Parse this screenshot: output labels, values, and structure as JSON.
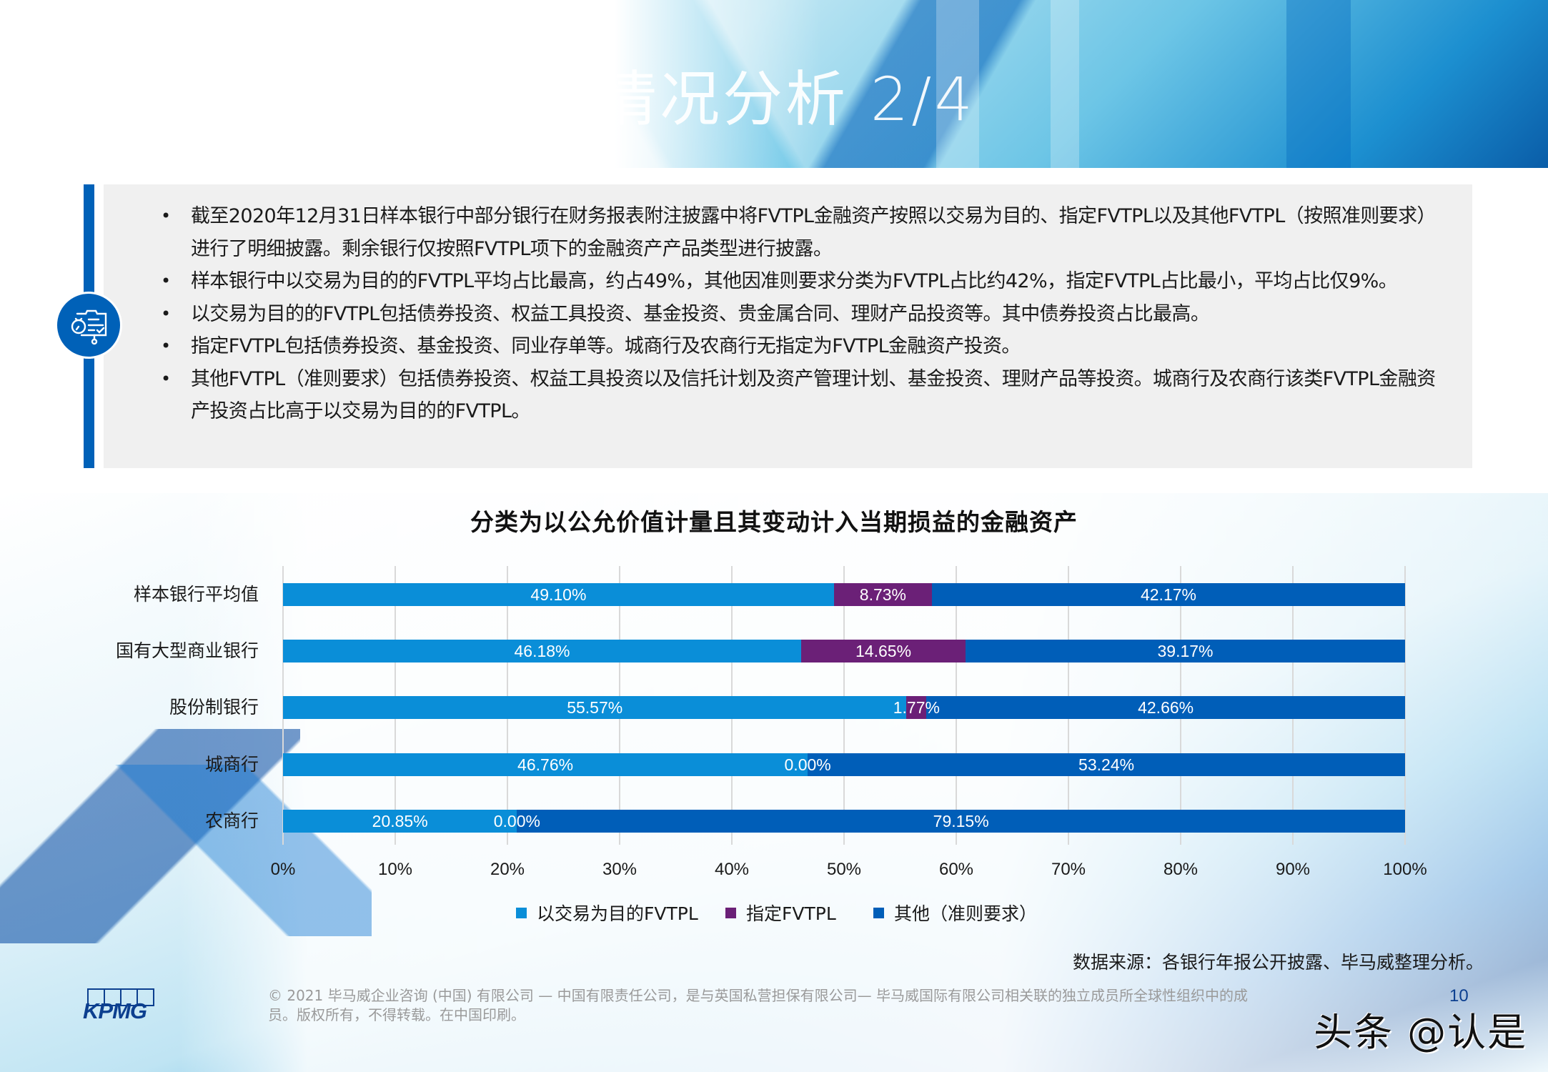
{
  "header": {
    "title": "情况分析 2/4"
  },
  "summary": {
    "icon": "presentation-stopwatch-icon",
    "bullets": [
      "截至2020年12月31日样本银行中部分银行在财务报表附注披露中将FVTPL金融资产按照以交易为目的、指定FVTPL以及其他FVTPL（按照准则要求）进行了明细披露。剩余银行仅按照FVTPL项下的金融资产产品类型进行披露。",
      "样本银行中以交易为目的的FVTPL平均占比最高，约占49%，其他因准则要求分类为FVTPL占比约42%，指定FVTPL占比最小，平均占比仅9%。",
      "以交易为目的的FVTPL包括债券投资、权益工具投资、基金投资、贵金属合同、理财产品投资等。其中债券投资占比最高。",
      "指定FVTPL包括债券投资、基金投资、同业存单等。城商行及农商行无指定为FVTPL金融资产投资。",
      "其他FVTPL（准则要求）包括债券投资、权益工具投资以及信托计划及资产管理计划、基金投资、理财产品等投资。城商行及农商行该类FVTPL金融资产投资占比高于以交易为目的的FVTPL。"
    ]
  },
  "chart_data": {
    "type": "bar",
    "orientation": "horizontal",
    "stacked": true,
    "title": "分类为以公允价值计量且其变动计入当期损益的金融资产",
    "xlabel": "",
    "ylabel": "",
    "xlim": [
      0,
      100
    ],
    "x_ticks": [
      "0%",
      "10%",
      "20%",
      "30%",
      "40%",
      "50%",
      "60%",
      "70%",
      "80%",
      "90%",
      "100%"
    ],
    "grid": true,
    "legend_position": "bottom",
    "categories": [
      "样本银行平均值",
      "国有大型商业银行",
      "股份制银行",
      "城商行",
      "农商行"
    ],
    "series": [
      {
        "name": "以交易为目的FVTPL",
        "color": "#0a8ed8",
        "values": [
          49.1,
          46.18,
          55.57,
          46.76,
          20.85
        ],
        "labels": [
          "49.10%",
          "46.18%",
          "55.57%",
          "46.76%",
          "20.85%"
        ]
      },
      {
        "name": "指定FVTPL",
        "color": "#6b2077",
        "values": [
          8.73,
          14.65,
          1.77,
          0.0,
          0.0
        ],
        "labels": [
          "8.73%",
          "14.65%",
          "1.77%",
          "0.00%",
          "0.00%"
        ]
      },
      {
        "name": "其他（准则要求）",
        "color": "#005eb8",
        "values": [
          42.17,
          39.17,
          42.66,
          53.24,
          79.15
        ],
        "labels": [
          "42.17%",
          "39.17%",
          "42.66%",
          "53.24%",
          "79.15%"
        ]
      }
    ]
  },
  "source": "数据来源：各银行年报公开披露、毕马威整理分析。",
  "footer": {
    "logo": "KPMG",
    "copyright_line1": "© 2021 毕马威企业咨询 (中国) 有限公司 — 中国有限责任公司，是与英国私营担保有限公司— 毕马威国际有限公司相关联的独立成员所全球性组织中的成",
    "copyright_line2": "员。版权所有，不得转载。在中国印刷。",
    "page_number": "10",
    "watermark": "头条 @认是"
  }
}
